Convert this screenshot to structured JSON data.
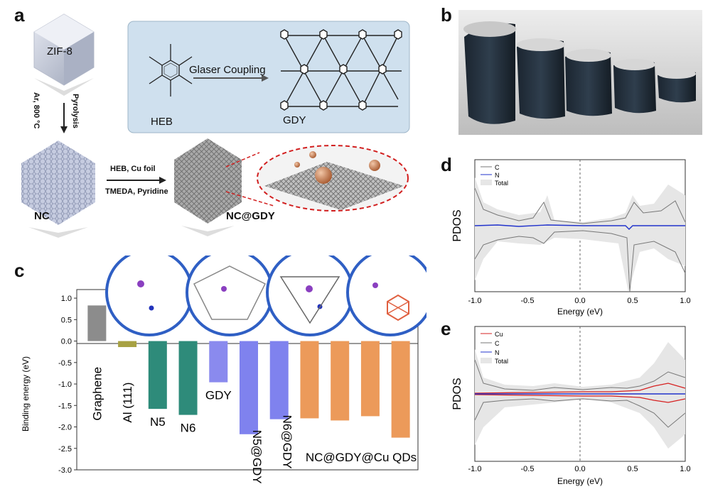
{
  "panel_letters": {
    "a": "a",
    "b": "b",
    "c": "c",
    "d": "d",
    "e": "e"
  },
  "panel_a": {
    "zif8": "ZIF-8",
    "ar_temp": "Ar, 800 °C",
    "pyrolysis": "Pyrolysis",
    "nc": "NC",
    "reagents_top": "HEB, Cu foil",
    "reagents_bottom": "TMEDA, Pyridine",
    "nc_gdy": "NC@GDY",
    "inset": {
      "heb": "HEB",
      "reaction": "Glaser Coupling",
      "gdy": "GDY"
    },
    "colors": {
      "inset_bg": "#cfe0ee",
      "dashed": "#d21f1f",
      "nanoparticle": "#c07a4f"
    }
  },
  "panel_c": {
    "chart_data": {
      "type": "bar",
      "ylabel": "Binding energy (eV)",
      "ylim": [
        -3.0,
        1.2
      ],
      "yticks": [
        "1.0",
        "0.5",
        "0.0",
        "-0.5",
        "-1.0",
        "-1.5",
        "-2.0",
        "-2.5",
        "-3.0"
      ],
      "bars": [
        {
          "label": "Graphene",
          "value": 0.83,
          "color": "#8c8c8c"
        },
        {
          "label": "Al (111)",
          "value": -0.14,
          "color": "#a7a142"
        },
        {
          "label": "N5",
          "value": -1.58,
          "color": "#2e8b7a"
        },
        {
          "label": "N6",
          "value": -1.72,
          "color": "#2e8b7a"
        },
        {
          "label": "GDY",
          "value": -0.96,
          "color": "#8a8aee"
        },
        {
          "label": "N5@GDY",
          "value": -2.17,
          "color": "#7f82ee"
        },
        {
          "label": "N6@GDY",
          "value": -1.82,
          "color": "#7f82ee"
        },
        {
          "label": "",
          "value": -1.8,
          "color": "#ec9a5a"
        },
        {
          "label": "",
          "value": -1.85,
          "color": "#ec9a5a"
        },
        {
          "label": "",
          "value": -1.75,
          "color": "#ec9a5a"
        },
        {
          "label": "",
          "value": -2.25,
          "color": "#ec9a5a"
        }
      ],
      "group_label": "NC@GDY@Cu QDs"
    }
  },
  "panel_d": {
    "chart_data": {
      "type": "line",
      "xlabel": "Energy (eV)",
      "ylabel": "PDOS",
      "xlim": [
        -1.0,
        1.0
      ],
      "xticks": [
        "-1.0",
        "-0.5",
        "0.0",
        "0.5",
        "1.0"
      ],
      "legend": [
        "C",
        "N",
        "Total"
      ],
      "legend_colors": [
        "#777777",
        "#2233cc",
        "#dcdcdc"
      ],
      "legend_position": "top-left"
    }
  },
  "panel_e": {
    "chart_data": {
      "type": "line",
      "xlabel": "Energy (eV)",
      "ylabel": "PDOS",
      "xlim": [
        -1.0,
        1.0
      ],
      "xticks": [
        "-1.0",
        "-0.5",
        "0.0",
        "0.5",
        "1.0"
      ],
      "legend": [
        "Cu",
        "C",
        "N",
        "Total"
      ],
      "legend_colors": [
        "#d62020",
        "#777777",
        "#2233cc",
        "#dcdcdc"
      ],
      "legend_position": "top-left"
    }
  }
}
